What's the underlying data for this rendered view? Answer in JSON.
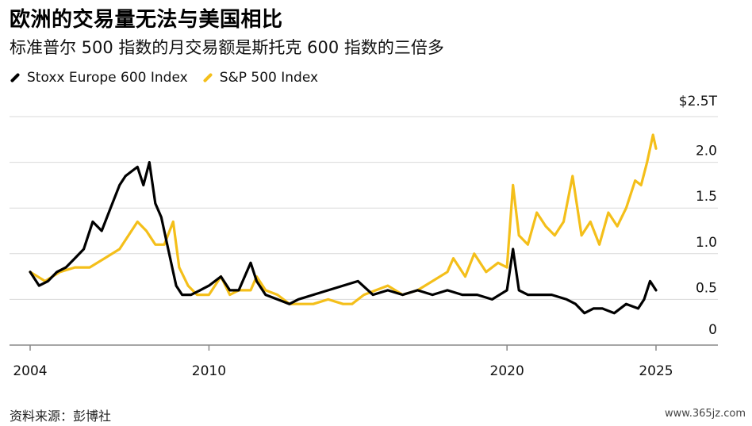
{
  "header": {
    "title": "欧洲的交易量无法与美国相比",
    "subtitle": "标准普尔 500 指数的月交易额是斯托克 600 指数的三倍多"
  },
  "footer": {
    "source": "资料来源：彭博社",
    "watermark": "www.365jz.com"
  },
  "colors": {
    "stoxx": "#000000",
    "sp500": "#f4bf1a",
    "grid": "#d9d9d9",
    "axis": "#888888"
  },
  "chart_data": {
    "type": "line",
    "y_unit_label": "$2.5T",
    "ylim": [
      0,
      2.5
    ],
    "xlim": [
      2004.0,
      2025.1
    ],
    "y_ticks": [
      {
        "value": 0,
        "label": "0"
      },
      {
        "value": 0.5,
        "label": "0.5"
      },
      {
        "value": 1.0,
        "label": "1.0"
      },
      {
        "value": 1.5,
        "label": "1.5"
      },
      {
        "value": 2.0,
        "label": "2.0"
      }
    ],
    "x_ticks": [
      {
        "value": 2004,
        "label": "2004"
      },
      {
        "value": 2010,
        "label": "2010"
      },
      {
        "value": 2020,
        "label": "2020"
      },
      {
        "value": 2025,
        "label": "2025"
      }
    ],
    "grid": true,
    "legend_position": "top-left",
    "series": [
      {
        "name": "S&P 500 Index",
        "color": "#f4bf1a",
        "x": [
          2004.0,
          2004.5,
          2005.0,
          2005.5,
          2006.0,
          2006.5,
          2007.0,
          2007.3,
          2007.6,
          2007.9,
          2008.2,
          2008.5,
          2008.8,
          2009.0,
          2009.3,
          2009.6,
          2010.0,
          2010.4,
          2010.7,
          2011.0,
          2011.4,
          2011.6,
          2011.9,
          2012.3,
          2012.7,
          2013.0,
          2013.5,
          2014.0,
          2014.5,
          2014.8,
          2015.2,
          2015.6,
          2016.0,
          2016.5,
          2017.0,
          2017.5,
          2018.0,
          2018.2,
          2018.6,
          2018.9,
          2019.3,
          2019.7,
          2020.0,
          2020.2,
          2020.4,
          2020.7,
          2021.0,
          2021.3,
          2021.6,
          2021.9,
          2022.2,
          2022.5,
          2022.8,
          2023.1,
          2023.4,
          2023.7,
          2024.0,
          2024.3,
          2024.5,
          2024.7,
          2024.9,
          2025.0
        ],
        "values": [
          0.8,
          0.7,
          0.8,
          0.85,
          0.85,
          0.95,
          1.05,
          1.2,
          1.35,
          1.25,
          1.1,
          1.1,
          1.35,
          0.85,
          0.65,
          0.55,
          0.55,
          0.75,
          0.55,
          0.6,
          0.6,
          0.75,
          0.6,
          0.55,
          0.45,
          0.45,
          0.45,
          0.5,
          0.45,
          0.45,
          0.55,
          0.6,
          0.65,
          0.55,
          0.6,
          0.7,
          0.8,
          0.95,
          0.75,
          1.0,
          0.8,
          0.9,
          0.85,
          1.75,
          1.2,
          1.1,
          1.45,
          1.3,
          1.2,
          1.35,
          1.85,
          1.2,
          1.35,
          1.1,
          1.45,
          1.3,
          1.5,
          1.8,
          1.75,
          2.0,
          2.3,
          2.15
        ]
      },
      {
        "name": "Stoxx Europe 600 Index",
        "color": "#000000",
        "x": [
          2004.0,
          2004.3,
          2004.6,
          2004.9,
          2005.2,
          2005.5,
          2005.8,
          2006.1,
          2006.4,
          2006.7,
          2007.0,
          2007.2,
          2007.4,
          2007.6,
          2007.8,
          2008.0,
          2008.2,
          2008.4,
          2008.6,
          2008.8,
          2008.9,
          2009.1,
          2009.4,
          2009.7,
          2010.0,
          2010.4,
          2010.7,
          2011.0,
          2011.4,
          2011.6,
          2011.9,
          2012.3,
          2012.7,
          2013.0,
          2013.5,
          2014.0,
          2014.5,
          2015.0,
          2015.5,
          2016.0,
          2016.5,
          2017.0,
          2017.5,
          2018.0,
          2018.5,
          2019.0,
          2019.5,
          2020.0,
          2020.2,
          2020.4,
          2020.7,
          2021.0,
          2021.5,
          2022.0,
          2022.3,
          2022.6,
          2022.9,
          2023.2,
          2023.6,
          2024.0,
          2024.4,
          2024.6,
          2024.8,
          2025.0
        ],
        "values": [
          0.8,
          0.65,
          0.7,
          0.8,
          0.85,
          0.95,
          1.05,
          1.35,
          1.25,
          1.5,
          1.75,
          1.85,
          1.9,
          1.95,
          1.75,
          2.0,
          1.55,
          1.4,
          1.1,
          0.8,
          0.65,
          0.55,
          0.55,
          0.6,
          0.65,
          0.75,
          0.6,
          0.6,
          0.9,
          0.7,
          0.55,
          0.5,
          0.45,
          0.5,
          0.55,
          0.6,
          0.65,
          0.7,
          0.55,
          0.6,
          0.55,
          0.6,
          0.55,
          0.6,
          0.55,
          0.55,
          0.5,
          0.6,
          1.05,
          0.6,
          0.55,
          0.55,
          0.55,
          0.5,
          0.45,
          0.35,
          0.4,
          0.4,
          0.35,
          0.45,
          0.4,
          0.5,
          0.7,
          0.6
        ]
      }
    ]
  }
}
